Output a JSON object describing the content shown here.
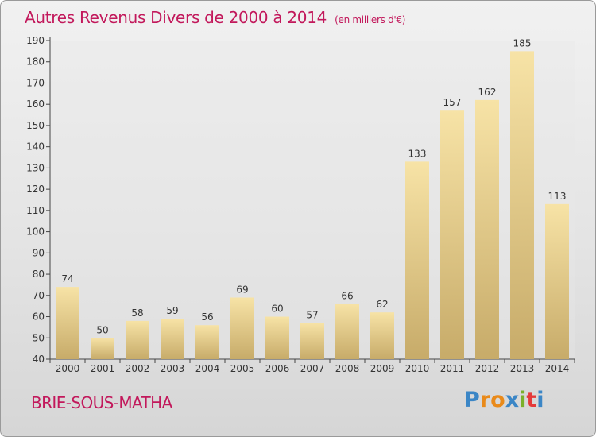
{
  "title": "Autres Revenus Divers de 2000 à 2014",
  "subtitle": "(en milliers d'€)",
  "town": "BRIE-SOUS-MATHA",
  "logo": {
    "text": "Proxiti",
    "colors": [
      "#3b86c6",
      "#e98a1a",
      "#e98a1a",
      "#3b86c6",
      "#7bb02a",
      "#e53a3a",
      "#3b86c6"
    ]
  },
  "colors": {
    "title": "#c2185b",
    "bar_light": "#f7e3a6",
    "bar_dark": "#c7ab69"
  },
  "chart_data": {
    "type": "bar",
    "categories": [
      "2000",
      "2001",
      "2002",
      "2003",
      "2004",
      "2005",
      "2006",
      "2007",
      "2008",
      "2009",
      "2010",
      "2011",
      "2012",
      "2013",
      "2014"
    ],
    "values": [
      74,
      50,
      58,
      59,
      56,
      69,
      60,
      57,
      66,
      62,
      133,
      157,
      162,
      185,
      113
    ],
    "ylim": [
      40,
      190
    ],
    "yticks": [
      40,
      50,
      60,
      70,
      80,
      90,
      100,
      110,
      120,
      130,
      140,
      150,
      160,
      170,
      180,
      190
    ],
    "xlabel": "",
    "ylabel": "",
    "grid": false,
    "data_labels": true
  }
}
